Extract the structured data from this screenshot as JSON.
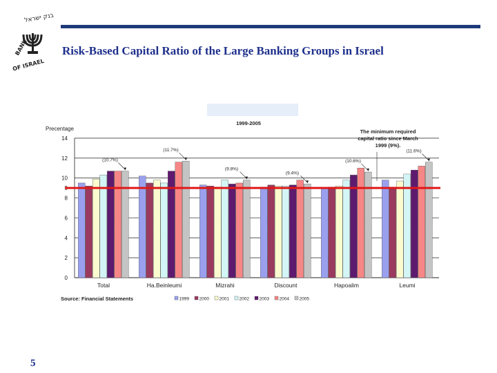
{
  "slide": {
    "title": "Risk-Based Capital Ratio of the Large Banking Groups in Israel",
    "page_number": "5",
    "logo_text_top": "בנק ישראל",
    "logo_text_bottom": "BANK OF ISRAEL"
  },
  "chart_data": {
    "type": "bar",
    "period": "1999-2005",
    "ylabel": "Precentage",
    "ylim": [
      0,
      14
    ],
    "yticks": [
      0,
      2,
      4,
      6,
      8,
      9,
      10,
      12,
      14
    ],
    "categories": [
      "Total",
      "Ha.Beinleumi",
      "Mizrahi",
      "Discount",
      "Hapoalim",
      "Leumi"
    ],
    "series": [
      {
        "name": "1999",
        "color": "#9aa0ee",
        "values": [
          9.5,
          10.2,
          9.3,
          9.1,
          9.0,
          9.8
        ]
      },
      {
        "name": "2000",
        "color": "#9a3a5e",
        "values": [
          9.2,
          9.5,
          9.2,
          9.3,
          9.1,
          9.1
        ]
      },
      {
        "name": "2001",
        "color": "#fbfbd0",
        "values": [
          9.9,
          9.8,
          9.1,
          9.2,
          9.2,
          9.7
        ]
      },
      {
        "name": "2002",
        "color": "#d4f5f5",
        "values": [
          10.3,
          9.5,
          9.8,
          9.2,
          9.8,
          10.4
        ]
      },
      {
        "name": "2003",
        "color": "#5e1a6e",
        "values": [
          10.7,
          10.7,
          9.4,
          9.3,
          10.3,
          10.8
        ]
      },
      {
        "name": "2004",
        "color": "#f78686",
        "values": [
          10.7,
          11.6,
          9.5,
          9.8,
          11.0,
          11.2
        ]
      },
      {
        "name": "2005",
        "color": "#c4c4c4",
        "values": [
          10.7,
          11.7,
          9.8,
          9.4,
          10.6,
          11.6
        ]
      }
    ],
    "annotations": [
      {
        "category": "Total",
        "text": "(10.7%)"
      },
      {
        "category": "Ha.Beinleumi",
        "text": "(11.7%)"
      },
      {
        "category": "Mizrahi",
        "text": "(9.8%)"
      },
      {
        "category": "Discount",
        "text": "(9.4%)"
      },
      {
        "category": "Hapoalim",
        "text": "(10.6%)"
      },
      {
        "category": "Leumi",
        "text": "(11.6%)"
      }
    ],
    "threshold": {
      "value": 9,
      "color": "#e01818",
      "label_lines": [
        "The minimum required",
        "capital ratio since March",
        "1999 (9%)."
      ]
    },
    "source": "Source: Financial Statements",
    "legend_placement": "bottom"
  }
}
